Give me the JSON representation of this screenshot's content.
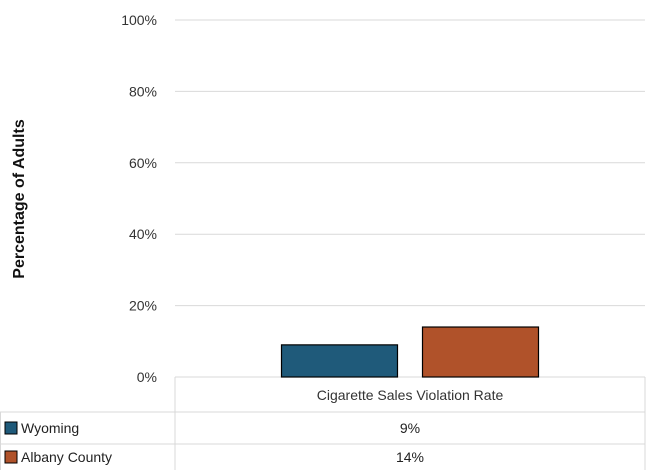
{
  "chart_data": {
    "type": "bar",
    "categories": [
      "Cigarette Sales Violation Rate"
    ],
    "series": [
      {
        "name": "Wyoming",
        "values": [
          9
        ],
        "color": "#1f5a7a",
        "label": "9%"
      },
      {
        "name": "Albany County",
        "values": [
          14
        ],
        "color": "#b0522a",
        "label": "14%"
      }
    ],
    "title": "",
    "xlabel": "",
    "ylabel": "Percentage of Adults",
    "ylim": [
      0,
      100
    ],
    "yticks": [
      {
        "value": 0,
        "label": "0%"
      },
      {
        "value": 20,
        "label": "20%"
      },
      {
        "value": 40,
        "label": "40%"
      },
      {
        "value": 60,
        "label": "60%"
      },
      {
        "value": 80,
        "label": "80%"
      },
      {
        "value": 100,
        "label": "100%"
      }
    ],
    "grid": true,
    "legend": "data-table"
  }
}
